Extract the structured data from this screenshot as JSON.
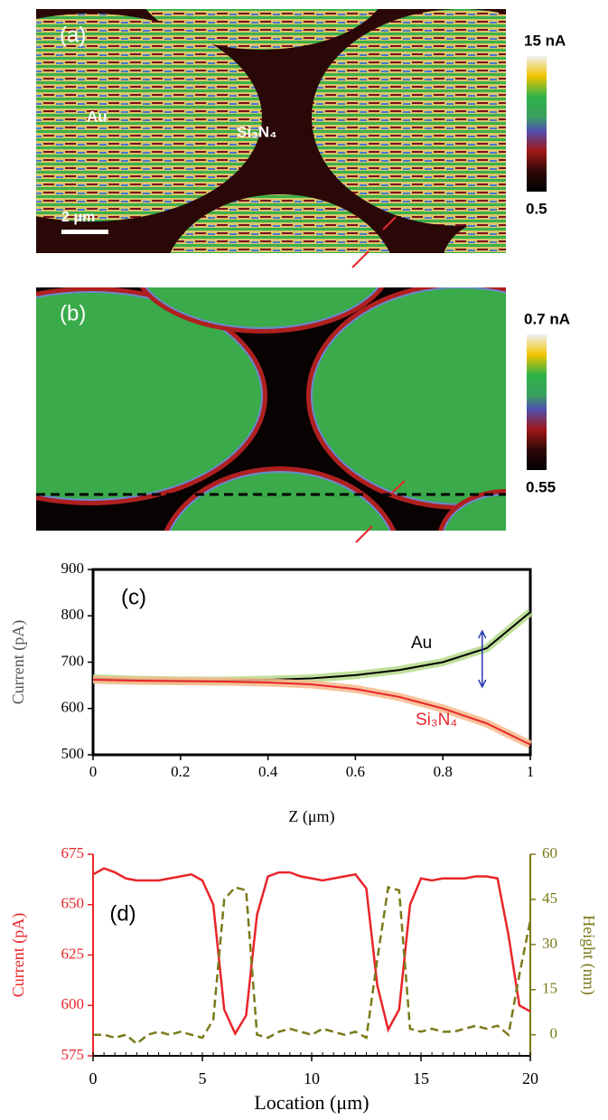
{
  "chart_data": [
    {
      "type": "image",
      "panel_label": "(a)",
      "colorbar_labels": [
        "15 nA",
        "0.5"
      ],
      "region_labels": [
        "Au",
        "Si₃N₄"
      ],
      "scale_bar": "2 μm"
    },
    {
      "type": "image",
      "panel_label": "(b)",
      "colorbar_labels": [
        "0.7 nA",
        "0.55"
      ]
    },
    {
      "type": "line",
      "panel_label": "(c)",
      "x": [
        0,
        0.1,
        0.2,
        0.3,
        0.4,
        0.5,
        0.6,
        0.7,
        0.8,
        0.9,
        1
      ],
      "series": [
        {
          "name": "Au",
          "color": "#000000",
          "band_color": "#b5d98a",
          "values": [
            665,
            662,
            660,
            660,
            662,
            665,
            672,
            683,
            700,
            730,
            808
          ]
        },
        {
          "name": "Si₃N₄",
          "color": "#e8252a",
          "band_color": "#f7b98a",
          "values": [
            662,
            660,
            659,
            658,
            656,
            652,
            642,
            625,
            600,
            568,
            522
          ]
        }
      ],
      "xlim": [
        0,
        1
      ],
      "xticks": [
        0,
        0.2,
        0.4,
        0.6,
        0.8,
        1
      ],
      "ylim": [
        500,
        900
      ],
      "yticks": [
        500,
        600,
        700,
        800,
        900
      ],
      "xlabel": "Z (μm)",
      "ylabel": "Current (pA)"
    },
    {
      "type": "line",
      "panel_label": "(d)",
      "x": [
        0,
        0.5,
        1,
        1.5,
        2,
        2.5,
        3,
        3.5,
        4,
        4.5,
        5,
        5.5,
        6,
        6.5,
        7,
        7.5,
        8,
        8.5,
        9,
        9.5,
        10,
        10.5,
        11,
        11.5,
        12,
        12.5,
        13,
        13.5,
        14,
        14.5,
        15,
        15.5,
        16,
        16.5,
        17,
        17.5,
        18,
        18.5,
        19,
        19.5,
        20
      ],
      "series": [
        {
          "name": "Current (pA)",
          "color": "#e8252a",
          "values": [
            665,
            668,
            666,
            663,
            662,
            662,
            662,
            663,
            664,
            665,
            662,
            650,
            598,
            586,
            595,
            645,
            664,
            666,
            666,
            664,
            663,
            662,
            663,
            664,
            665,
            658,
            610,
            588,
            598,
            650,
            663,
            662,
            663,
            663,
            663,
            664,
            664,
            663,
            635,
            600,
            597
          ]
        },
        {
          "name": "Height (nm)",
          "color": "#7a7a1a",
          "axis": "y2",
          "dashed": true,
          "values": [
            0,
            0,
            -1,
            0,
            -3,
            0,
            1,
            0,
            1,
            0,
            -1,
            5,
            45,
            49,
            48,
            0,
            -1,
            1,
            2,
            1,
            0,
            2,
            1,
            0,
            1,
            -1,
            25,
            49,
            48,
            2,
            1,
            2,
            1,
            1,
            2,
            3,
            2,
            3,
            0,
            20,
            38
          ]
        }
      ],
      "xlim": [
        0,
        20
      ],
      "xticks": [
        0,
        5,
        10,
        15,
        20
      ],
      "ylim": [
        575,
        675
      ],
      "yticks": [
        575,
        600,
        625,
        650,
        675
      ],
      "y2lim": [
        -7,
        60
      ],
      "y2ticks": [
        0,
        15,
        30,
        45,
        60
      ],
      "xlabel": "Location (μm)"
    }
  ]
}
